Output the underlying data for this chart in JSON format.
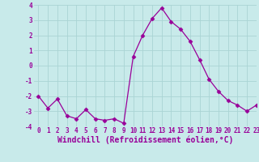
{
  "x": [
    0,
    1,
    2,
    3,
    4,
    5,
    6,
    7,
    8,
    9,
    10,
    11,
    12,
    13,
    14,
    15,
    16,
    17,
    18,
    19,
    20,
    21,
    22,
    23
  ],
  "y": [
    -2.0,
    -2.8,
    -2.2,
    -3.3,
    -3.5,
    -2.9,
    -3.5,
    -3.6,
    -3.5,
    -3.8,
    0.6,
    2.0,
    3.1,
    3.8,
    2.9,
    2.4,
    1.6,
    0.4,
    -0.9,
    -1.7,
    -2.3,
    -2.6,
    -3.0,
    -2.6
  ],
  "line_color": "#990099",
  "marker": "D",
  "marker_size": 2.5,
  "bg_color": "#c8eaea",
  "grid_color": "#aad4d4",
  "xlabel": "Windchill (Refroidissement éolien,°C)",
  "xlim": [
    -0.5,
    23
  ],
  "ylim": [
    -4,
    4
  ],
  "yticks": [
    -4,
    -3,
    -2,
    -1,
    0,
    1,
    2,
    3,
    4
  ],
  "xticks": [
    0,
    1,
    2,
    3,
    4,
    5,
    6,
    7,
    8,
    9,
    10,
    11,
    12,
    13,
    14,
    15,
    16,
    17,
    18,
    19,
    20,
    21,
    22,
    23
  ],
  "tick_label_fontsize": 5.5,
  "xlabel_fontsize": 7.0,
  "line_width": 0.9
}
